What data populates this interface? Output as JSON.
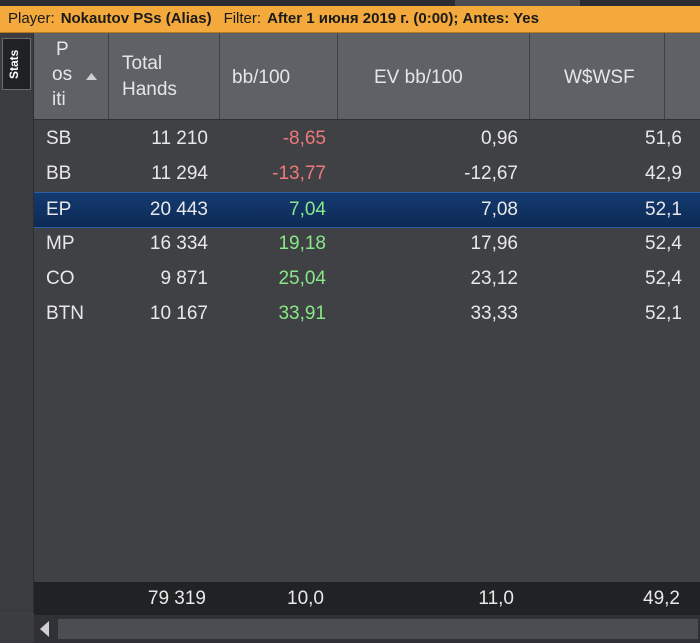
{
  "filter_bar": {
    "player_label": "Player:",
    "player_value": "Nokautov PSs (Alias)",
    "filter_label": "Filter:",
    "filter_value": "After 1 июня 2019 г. (0:00); Antes: Yes"
  },
  "side_tab": {
    "label": "Stats"
  },
  "columns": {
    "position": [
      "P",
      "os",
      "iti"
    ],
    "total_hands": [
      "Total",
      "Hands"
    ],
    "bb100": "bb/100",
    "ev_bb100": "EV bb/100",
    "wwsf": "W$WSF"
  },
  "sort_icon": "triangle-up-icon",
  "rows": [
    {
      "position": "SB",
      "total_hands": "11 210",
      "bb100": "-8,65",
      "ev_bb100": "0,96",
      "wwsf": "51,6"
    },
    {
      "position": "BB",
      "total_hands": "11 294",
      "bb100": "-13,77",
      "ev_bb100": "-12,67",
      "wwsf": "42,9"
    },
    {
      "position": "EP",
      "total_hands": "20 443",
      "bb100": "7,04",
      "ev_bb100": "7,08",
      "wwsf": "52,1"
    },
    {
      "position": "MP",
      "total_hands": "16 334",
      "bb100": "19,18",
      "ev_bb100": "17,96",
      "wwsf": "52,4"
    },
    {
      "position": "CO",
      "total_hands": "9 871",
      "bb100": "25,04",
      "ev_bb100": "23,12",
      "wwsf": "52,4"
    },
    {
      "position": "BTN",
      "total_hands": "10 167",
      "bb100": "33,91",
      "ev_bb100": "33,33",
      "wwsf": "52,1"
    }
  ],
  "selected_row": "EP",
  "totals": {
    "total_hands": "79 319",
    "bb100": "10,0",
    "ev_bb100": "11,0",
    "wwsf": "49,2"
  },
  "colors": {
    "filter_bar": "#f3a93b",
    "negative": "#f07878",
    "positive": "#88e888",
    "selected_row": "#143a70"
  }
}
